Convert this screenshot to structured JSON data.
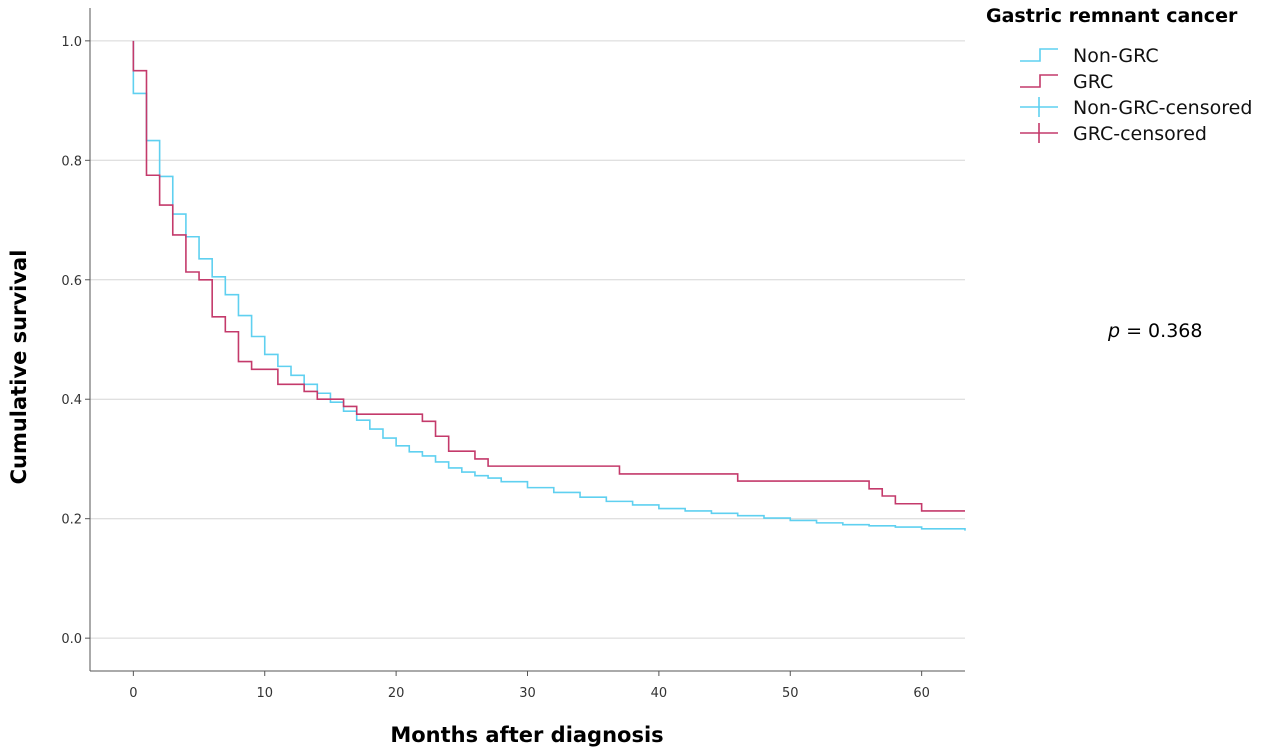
{
  "chart_data": {
    "type": "line",
    "step": true,
    "xlabel": "Months after diagnosis",
    "ylabel": "Cumulative survival",
    "xlim": [
      -3.3,
      63.3
    ],
    "ylim": [
      -0.055,
      1.055
    ],
    "xticks": [
      0,
      10,
      20,
      30,
      40,
      50,
      60
    ],
    "yticks": [
      0.0,
      0.2,
      0.4,
      0.6,
      0.8,
      1.0
    ],
    "ytick_labels": [
      "0.0",
      "0.2",
      "0.4",
      "0.6",
      "0.8",
      "1.0"
    ],
    "grid": "horizontal",
    "legend": {
      "title": "Gastric remnant cancer",
      "position": "top-right-outside",
      "entries": [
        "Non-GRC",
        "GRC",
        "Non-GRC-censored",
        "GRC-censored"
      ]
    },
    "annotation": {
      "italic": "p",
      "rest": " = 0.368"
    },
    "series": [
      {
        "name": "Non-GRC",
        "color": "#5fd0f0",
        "x": [
          0,
          0,
          1,
          2,
          3,
          4,
          5,
          6,
          7,
          8,
          9,
          10,
          11,
          12,
          13,
          14,
          15,
          16,
          17,
          18,
          19,
          20,
          21,
          22,
          23,
          24,
          25,
          26,
          27,
          28,
          30,
          32,
          34,
          36,
          38,
          40,
          42,
          44,
          46,
          48,
          50,
          52,
          54,
          56,
          58,
          60,
          63.3
        ],
        "y": [
          1.0,
          0.912,
          0.833,
          0.773,
          0.71,
          0.672,
          0.635,
          0.605,
          0.575,
          0.54,
          0.505,
          0.475,
          0.455,
          0.44,
          0.425,
          0.41,
          0.395,
          0.38,
          0.365,
          0.35,
          0.335,
          0.322,
          0.312,
          0.305,
          0.295,
          0.285,
          0.278,
          0.272,
          0.268,
          0.262,
          0.252,
          0.244,
          0.236,
          0.229,
          0.223,
          0.217,
          0.213,
          0.209,
          0.205,
          0.201,
          0.197,
          0.193,
          0.19,
          0.188,
          0.186,
          0.183,
          0.18
        ]
      },
      {
        "name": "GRC",
        "color": "#c43a6b",
        "x": [
          0,
          0,
          1,
          2,
          3,
          4,
          5,
          6,
          7,
          8,
          9,
          10,
          11,
          12,
          13,
          14,
          16,
          17,
          22,
          23,
          24,
          26,
          27,
          37,
          46,
          56,
          57,
          58,
          60,
          63.3
        ],
        "y": [
          1.0,
          0.95,
          0.775,
          0.725,
          0.675,
          0.613,
          0.6,
          0.538,
          0.513,
          0.463,
          0.45,
          0.45,
          0.425,
          0.425,
          0.413,
          0.4,
          0.388,
          0.375,
          0.363,
          0.338,
          0.313,
          0.3,
          0.288,
          0.275,
          0.263,
          0.25,
          0.238,
          0.225,
          0.213,
          0.213
        ]
      }
    ]
  }
}
